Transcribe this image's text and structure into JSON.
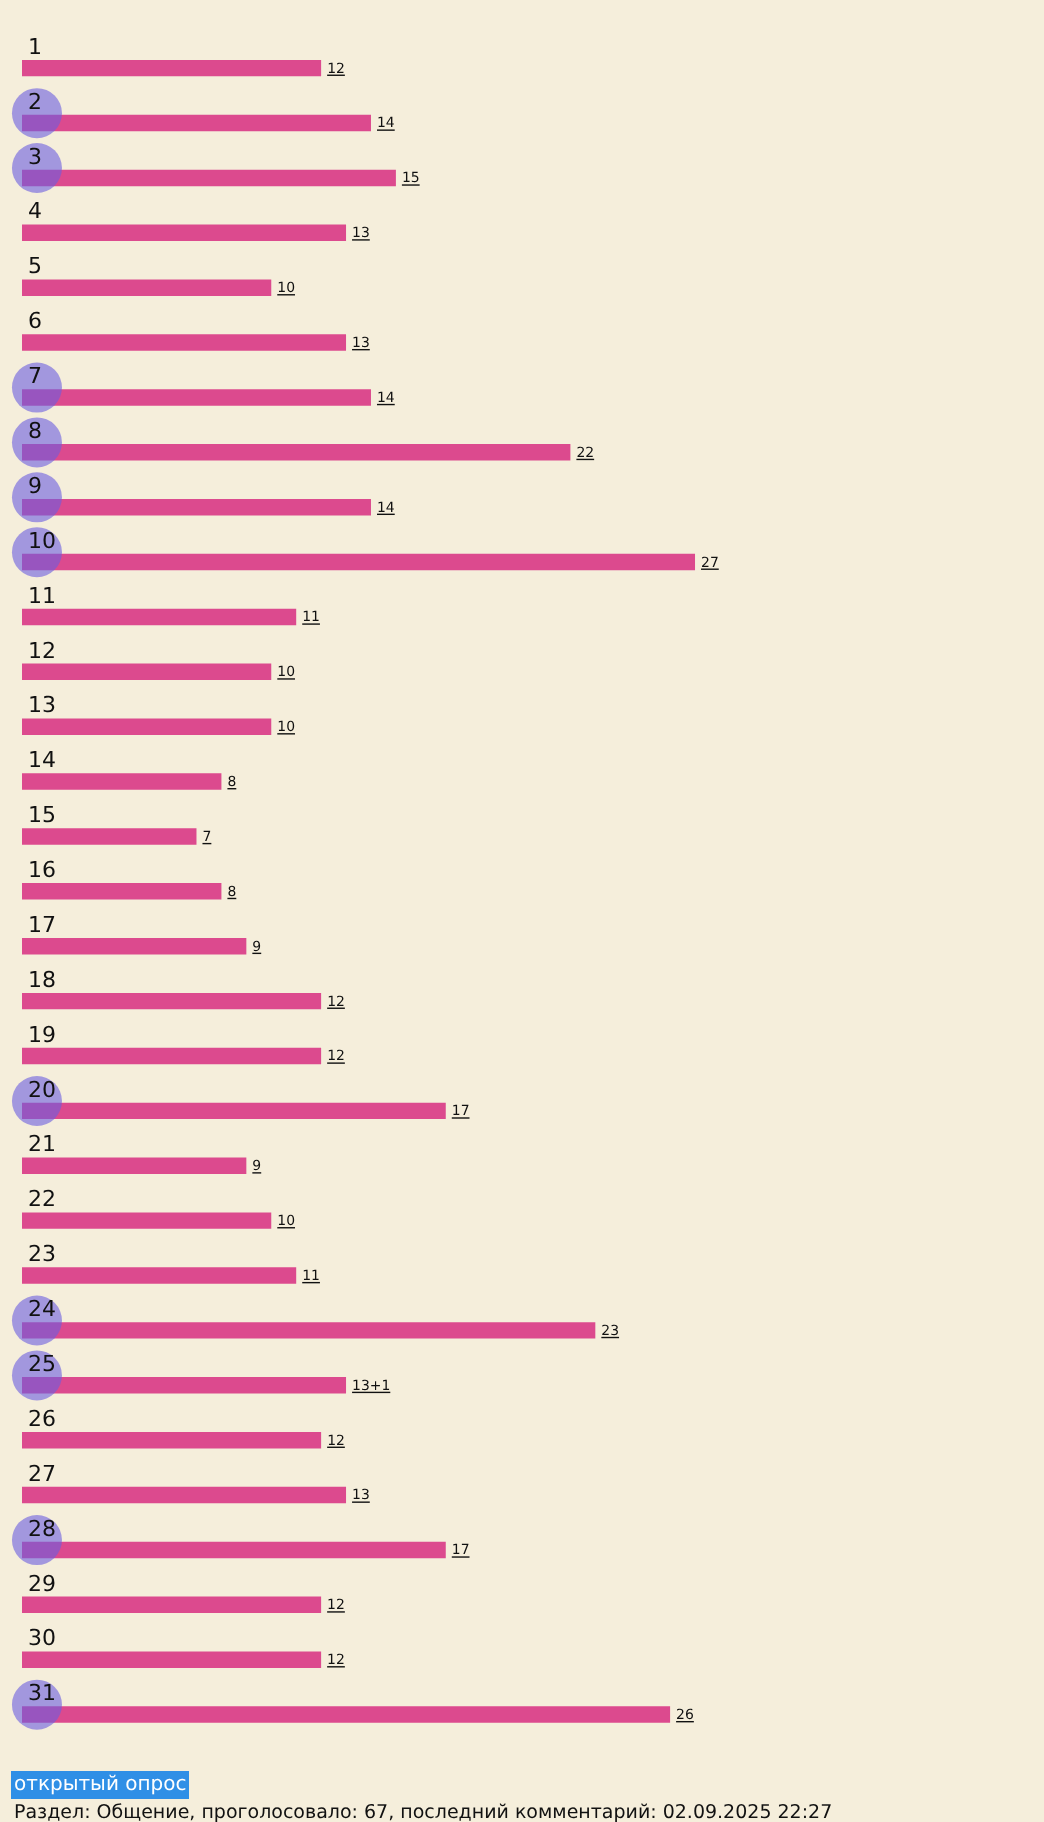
{
  "chart_data": {
    "type": "bar",
    "orientation": "horizontal",
    "categories": [
      "1",
      "2",
      "3",
      "4",
      "5",
      "6",
      "7",
      "8",
      "9",
      "10",
      "11",
      "12",
      "13",
      "14",
      "15",
      "16",
      "17",
      "18",
      "19",
      "20",
      "21",
      "22",
      "23",
      "24",
      "25",
      "26",
      "27",
      "28",
      "29",
      "30",
      "31"
    ],
    "xlim": [
      0,
      41
    ],
    "series": [
      {
        "color": "#dc4a8e",
        "values": [
          12,
          14,
          15,
          13,
          10,
          13,
          14,
          22,
          14,
          27,
          11,
          10,
          10,
          8,
          7,
          8,
          9,
          12,
          12,
          17,
          9,
          10,
          11,
          23,
          13,
          12,
          13,
          17,
          12,
          12,
          26
        ],
        "value_labels": [
          "12",
          "14",
          "15",
          "13",
          "10",
          "13",
          "14",
          "22",
          "14",
          "27",
          "11",
          "10",
          "10",
          "8",
          "7",
          "8",
          "9",
          "12",
          "12",
          "17",
          "9",
          "10",
          "11",
          "23",
          "13+1",
          "12",
          "13",
          "17",
          "12",
          "12",
          "26"
        ]
      },
      {
        "type": "scatter",
        "color": "#6a5ee0",
        "marker": "circle",
        "values": [
          null,
          0.6,
          0.6,
          null,
          null,
          null,
          0.6,
          0.6,
          0.6,
          0.6,
          null,
          null,
          null,
          null,
          null,
          null,
          null,
          null,
          null,
          0.6,
          null,
          null,
          null,
          0.6,
          0.6,
          null,
          null,
          0.6,
          null,
          null,
          0.6
        ]
      }
    ],
    "annotations": [
      "открытый опрос",
      "Раздел: Общение, проголосовало: 67, последний комментарий: 02.09.2025 22:27"
    ]
  }
}
